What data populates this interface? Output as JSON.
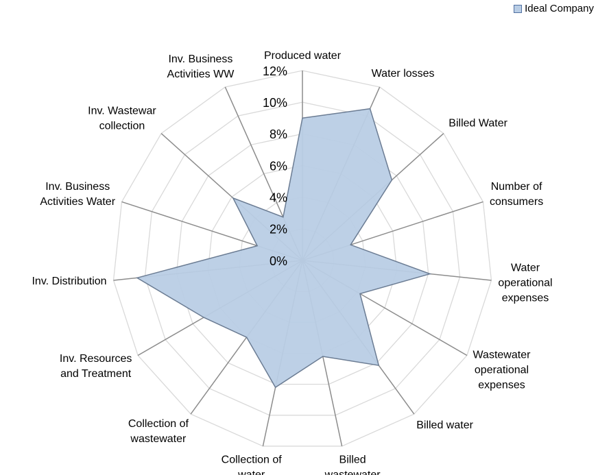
{
  "chart_data": {
    "type": "radar",
    "categories": [
      "Produced water",
      "Water losses",
      "Billed Water",
      "Number of\nconsumers",
      "Water\noperational\nexpenses",
      "Wastewater\noperational\nexpenses",
      "Billed water",
      "Billed\nwastewater",
      "Collection of\nwater",
      "Collection of\nwastewater",
      "Inv. Resources\nand Treatment",
      "Inv. Distribution",
      "Inv. Business\nActivities Water",
      "Inv. Wastewar\ncollection",
      "Inv. Business\nActivities WW"
    ],
    "series": [
      {
        "name": "Ideal Company",
        "color": "#b9cde5",
        "values": [
          9,
          10.5,
          7.6,
          3.2,
          8.1,
          4.2,
          8.2,
          6.2,
          8.2,
          6,
          7.2,
          10.5,
          3,
          5.9,
          3
        ]
      }
    ],
    "ylim": [
      0,
      12
    ],
    "yticks": [
      {
        "value": 0,
        "label": "0%"
      },
      {
        "value": 2,
        "label": "2%"
      },
      {
        "value": 4,
        "label": "4%"
      },
      {
        "value": 6,
        "label": "6%"
      },
      {
        "value": 8,
        "label": "8%"
      },
      {
        "value": 10,
        "label": "10%"
      },
      {
        "value": 12,
        "label": "12%"
      }
    ],
    "grid": true,
    "legend": "top-right"
  }
}
